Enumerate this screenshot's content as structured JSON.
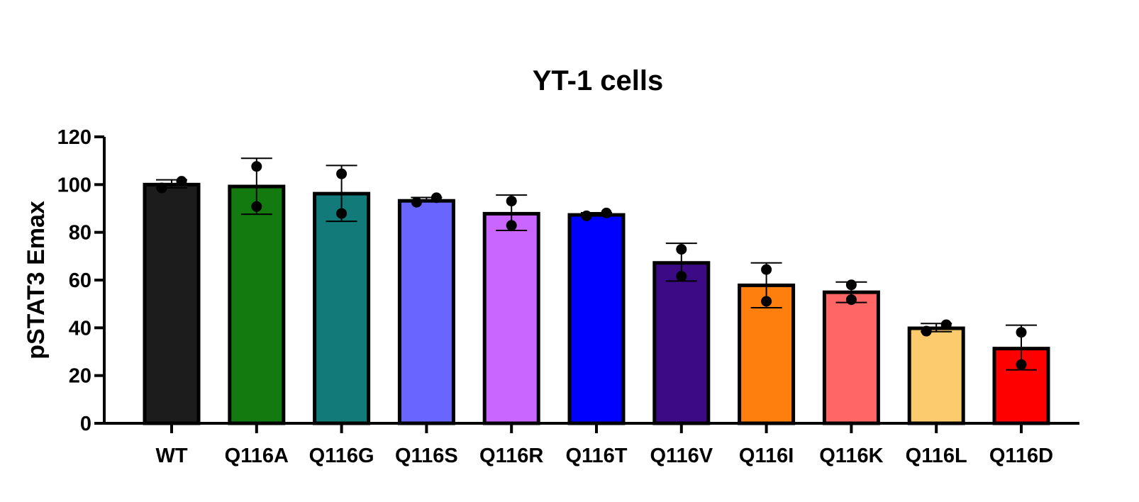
{
  "chart_data": {
    "type": "bar",
    "title": "YT-1 cells",
    "xlabel": "",
    "ylabel": "pSTAT3 Emax",
    "ylim": [
      0,
      120
    ],
    "yticks": [
      0,
      20,
      40,
      60,
      80,
      100,
      120
    ],
    "ytick_labels": [
      "0",
      "20",
      "40",
      "60",
      "80",
      "100",
      "120"
    ],
    "categories": [
      "WT",
      "Q116A",
      "Q116G",
      "Q116S",
      "Q116R",
      "Q116T",
      "Q116V",
      "Q116I",
      "Q116K",
      "Q116L",
      "Q116D"
    ],
    "values": [
      100,
      99.2,
      96.2,
      93.2,
      87.8,
      87.3,
      67.2,
      57.8,
      54.9,
      39.8,
      31.3
    ],
    "error_upper": [
      102,
      111,
      108,
      94.6,
      95.6,
      88.2,
      75.4,
      67.2,
      59.2,
      41.8,
      41.1
    ],
    "error_lower": [
      98.6,
      87.6,
      84.6,
      93,
      80.8,
      86.9,
      59.6,
      48.4,
      50.6,
      38.4,
      22.4
    ],
    "points": [
      [
        98.6,
        101.4
      ],
      [
        90.8,
        107.6
      ],
      [
        87.9,
        104.5
      ],
      [
        92.6,
        94.5
      ],
      [
        82.9,
        93.1
      ],
      [
        86.9,
        88.1
      ],
      [
        61.6,
        72.9
      ],
      [
        51.1,
        64.4
      ],
      [
        51.8,
        58.0
      ],
      [
        38.6,
        41.3
      ],
      [
        24.6,
        38.1
      ]
    ],
    "colors": [
      "#1c1c1c",
      "#137a0f",
      "#137a7a",
      "#6866ff",
      "#c866ff",
      "#0000ff",
      "#3d0a85",
      "#ff7f0e",
      "#ff6666",
      "#fccb6e",
      "#ff0000"
    ],
    "grid": false,
    "legend": "none"
  }
}
